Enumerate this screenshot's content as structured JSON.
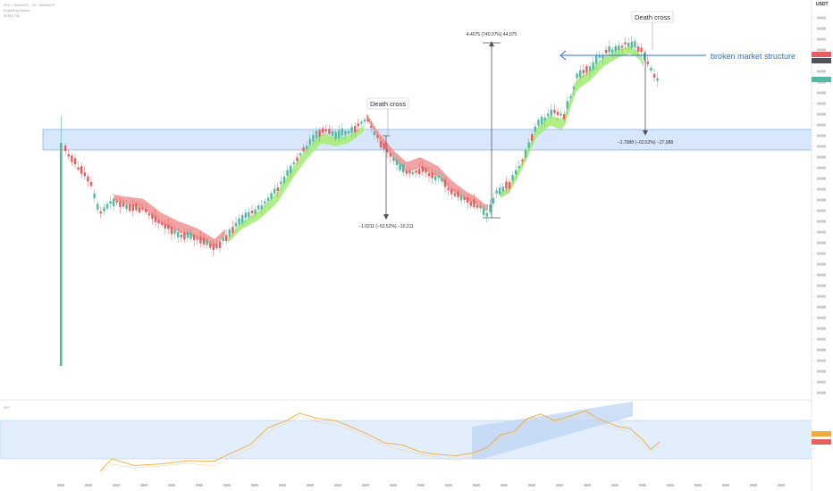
{
  "header": {
    "symbol_line": "SOL / TetherUS · 1D · BINANCE",
    "indicator_1": "Engulfing Detect",
    "indicator_2": "2EMA 7/8",
    "rsi_label": "RSI"
  },
  "axis": {
    "currency": "USDT"
  },
  "chart_data": {
    "type": "candlestick",
    "series": [
      {
        "name": "Price",
        "type": "candlestick"
      },
      {
        "name": "EMA ribbon",
        "type": "area"
      },
      {
        "name": "RSI",
        "type": "line"
      }
    ],
    "resistance_zone": {
      "color": "#d8e7fb",
      "border": "#6f9fe6"
    },
    "rsi_zone": {
      "color": "#e2eefc"
    },
    "rsi_channel": {
      "color": "#bed4f5"
    },
    "colors": {
      "up": "#53b9a2",
      "down": "#e85d5d",
      "ribbon_up": "#a8ec7a",
      "ribbon_down": "#f19a9a",
      "rsi": "#f2a93b",
      "arrow": "#2f6fd6"
    },
    "annotations": {
      "death_cross_1": "Death cross",
      "death_cross_2": "Death cross",
      "measure_1": "−1.0211 (−63.52%) −10,211",
      "measure_2": "4.4075 (740.07%) 44,075",
      "measure_3": "−2.7988 (−63.52%) −27,988",
      "structure_note": "broken market structure"
    }
  }
}
